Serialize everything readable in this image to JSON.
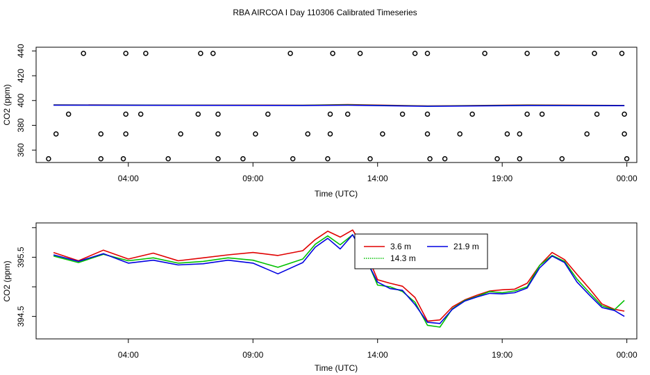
{
  "title": "RBA AIRCOA I  Day 110306  Calibrated Timeseries",
  "chart_data": [
    {
      "type": "scatter",
      "xlabel": "Time (UTC)",
      "ylabel": "CO2 (ppm)",
      "xlim": [
        0.3,
        24.4
      ],
      "ylim": [
        350,
        443
      ],
      "x_ticks": [
        {
          "v": 4,
          "label": "04:00"
        },
        {
          "v": 9,
          "label": "09:00"
        },
        {
          "v": 14,
          "label": "14:00"
        },
        {
          "v": 19,
          "label": "19:00"
        },
        {
          "v": 24,
          "label": "00:00"
        }
      ],
      "y_ticks": [
        360,
        380,
        400,
        420,
        440
      ],
      "line_series": [
        {
          "color": "#e00000",
          "x": [
            1.0,
            6.0,
            11.0,
            12.8,
            16.0,
            20.0,
            23.9
          ],
          "y": [
            396.5,
            396.3,
            396.2,
            396.8,
            395.6,
            396.4,
            396.0
          ]
        },
        {
          "color": "#00c000",
          "x": [
            1.0,
            6.0,
            11.0,
            12.8,
            16.0,
            20.0,
            23.9
          ],
          "y": [
            396.4,
            396.2,
            396.1,
            396.5,
            395.5,
            396.2,
            395.9
          ]
        },
        {
          "color": "#0000e0",
          "x": [
            1.0,
            6.0,
            11.0,
            12.8,
            16.0,
            20.0,
            23.9
          ],
          "y": [
            396.3,
            396.1,
            396.0,
            396.2,
            395.3,
            396.0,
            395.8
          ]
        }
      ],
      "points": {
        "x": [
          2.2,
          3.9,
          4.7,
          6.9,
          7.4,
          10.5,
          12.2,
          13.3,
          15.5,
          16.0,
          18.3,
          20.0,
          21.2,
          22.7,
          23.8,
          1.6,
          3.9,
          4.5,
          6.8,
          7.6,
          9.6,
          12.1,
          12.8,
          15.0,
          16.0,
          17.8,
          20.0,
          20.6,
          22.8,
          23.9,
          1.1,
          2.9,
          3.9,
          6.1,
          7.6,
          9.1,
          11.2,
          12.1,
          14.2,
          16.0,
          17.3,
          19.2,
          19.7,
          22.4,
          23.9,
          0.8,
          2.9,
          3.8,
          5.6,
          7.6,
          8.6,
          10.6,
          12.0,
          13.7,
          16.1,
          16.7,
          18.8,
          19.7,
          21.4,
          24.0
        ],
        "y": [
          438,
          438,
          438,
          438,
          438,
          438,
          438,
          438,
          438,
          438,
          438,
          438,
          438,
          438,
          438,
          389,
          389,
          389,
          389,
          389,
          389,
          389,
          389,
          389,
          389,
          389,
          389,
          389,
          389,
          389,
          373,
          373,
          373,
          373,
          373,
          373,
          373,
          373,
          373,
          373,
          373,
          373,
          373,
          373,
          373,
          353,
          353,
          353,
          353,
          353,
          353,
          353,
          353,
          353,
          353,
          353,
          353,
          353,
          353,
          353
        ]
      }
    },
    {
      "type": "line",
      "xlabel": "Time (UTC)",
      "ylabel": "CO2 (ppm)",
      "xlim": [
        0.3,
        24.4
      ],
      "ylim": [
        394.12,
        396.08
      ],
      "x_ticks": [
        {
          "v": 4,
          "label": "04:00"
        },
        {
          "v": 9,
          "label": "09:00"
        },
        {
          "v": 14,
          "label": "14:00"
        },
        {
          "v": 19,
          "label": "19:00"
        },
        {
          "v": 24,
          "label": "00:00"
        }
      ],
      "y_ticks": [
        {
          "v": 394.5,
          "label": "394.5"
        },
        {
          "v": 395.0,
          "label": ""
        },
        {
          "v": 395.5,
          "label": "395.5"
        },
        {
          "v": 396.0,
          "label": ""
        }
      ],
      "legend": {
        "position": "right",
        "entries": [
          {
            "label": "3.6 m",
            "color": "#e00000"
          },
          {
            "label": "21.9 m",
            "color": "#0000e0"
          },
          {
            "label": "14.3 m",
            "color": "#00c000"
          }
        ]
      },
      "series": [
        {
          "name": "3.6 m",
          "color": "#e00000",
          "x": [
            1.0,
            2.0,
            3.0,
            4.0,
            5.0,
            6.0,
            7.0,
            8.0,
            9.0,
            10.0,
            11.0,
            11.5,
            12.0,
            12.5,
            13.0,
            13.5,
            14.0,
            14.5,
            15.0,
            15.5,
            16.0,
            16.5,
            17.0,
            17.5,
            18.0,
            18.5,
            19.0,
            19.5,
            20.0,
            20.5,
            21.0,
            21.5,
            22.0,
            22.5,
            23.0,
            23.5,
            23.9
          ],
          "y": [
            395.58,
            395.44,
            395.62,
            395.47,
            395.57,
            395.44,
            395.49,
            395.54,
            395.58,
            395.53,
            395.61,
            395.8,
            395.94,
            395.84,
            395.96,
            395.62,
            395.12,
            395.06,
            395.01,
            394.82,
            394.42,
            394.44,
            394.66,
            394.78,
            394.86,
            394.93,
            394.95,
            394.96,
            395.06,
            395.36,
            395.58,
            395.46,
            395.21,
            394.97,
            394.71,
            394.62,
            394.59
          ]
        },
        {
          "name": "14.3 m",
          "color": "#00c000",
          "x": [
            1.0,
            2.0,
            3.0,
            4.0,
            5.0,
            6.0,
            7.0,
            8.0,
            9.0,
            10.0,
            11.0,
            11.5,
            12.0,
            12.5,
            13.0,
            13.5,
            14.0,
            14.5,
            15.0,
            15.5,
            16.0,
            16.5,
            17.0,
            17.5,
            18.0,
            18.5,
            19.0,
            19.5,
            20.0,
            20.5,
            21.0,
            21.5,
            22.0,
            22.5,
            23.0,
            23.5,
            23.9
          ],
          "y": [
            395.52,
            395.41,
            395.55,
            395.44,
            395.49,
            395.4,
            395.43,
            395.49,
            395.45,
            395.33,
            395.47,
            395.72,
            395.86,
            395.71,
            395.88,
            395.52,
            395.03,
            395.0,
            394.92,
            394.74,
            394.35,
            394.32,
            394.63,
            394.77,
            394.84,
            394.92,
            394.9,
            394.93,
            395.0,
            395.36,
            395.53,
            395.43,
            395.13,
            394.9,
            394.68,
            394.61,
            394.77
          ]
        },
        {
          "name": "21.9 m",
          "color": "#0000e0",
          "x": [
            1.0,
            2.0,
            3.0,
            4.0,
            5.0,
            6.0,
            7.0,
            8.0,
            9.0,
            10.0,
            11.0,
            11.5,
            12.0,
            12.5,
            13.0,
            13.5,
            14.0,
            14.5,
            15.0,
            15.5,
            16.0,
            16.5,
            17.0,
            17.5,
            18.0,
            18.5,
            19.0,
            19.5,
            20.0,
            20.5,
            21.0,
            21.5,
            22.0,
            22.5,
            23.0,
            23.5,
            23.9
          ],
          "y": [
            395.54,
            395.43,
            395.56,
            395.4,
            395.45,
            395.37,
            395.39,
            395.45,
            395.4,
            395.22,
            395.41,
            395.67,
            395.82,
            395.64,
            395.88,
            395.49,
            395.08,
            394.97,
            394.94,
            394.7,
            394.4,
            394.38,
            394.62,
            394.76,
            394.83,
            394.89,
            394.88,
            394.9,
            394.98,
            395.32,
            395.52,
            395.41,
            395.08,
            394.86,
            394.65,
            394.6,
            394.5
          ]
        }
      ]
    }
  ]
}
